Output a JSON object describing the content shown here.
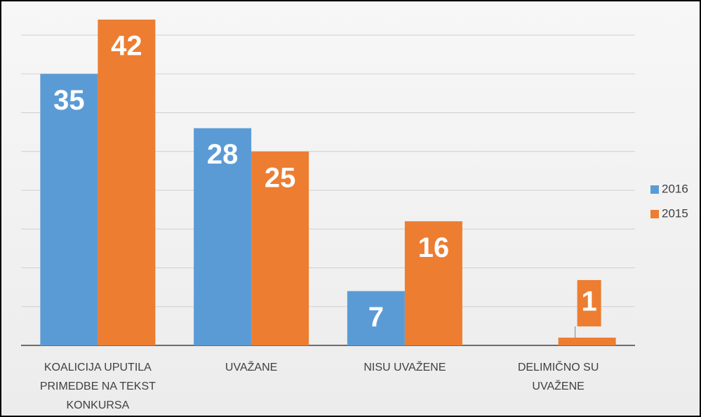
{
  "chart_data": {
    "type": "bar",
    "categories": [
      "KOALICIJA UPUTILA PRIMEDBE NA TEKST KONKURSA",
      "UVAŽANE",
      "NISU UVAŽENE",
      "DELIMIČNO SU UVAŽENE"
    ],
    "series": [
      {
        "name": "2016",
        "color": "#5b9bd5",
        "values": [
          35,
          28,
          7,
          null
        ]
      },
      {
        "name": "2015",
        "color": "#ed7d31",
        "values": [
          42,
          25,
          16,
          1
        ]
      }
    ],
    "ylim": [
      0,
      40
    ],
    "yticks": [
      0,
      5,
      10,
      15,
      20,
      25,
      30,
      35,
      40
    ],
    "grid": true,
    "legend": "right"
  }
}
